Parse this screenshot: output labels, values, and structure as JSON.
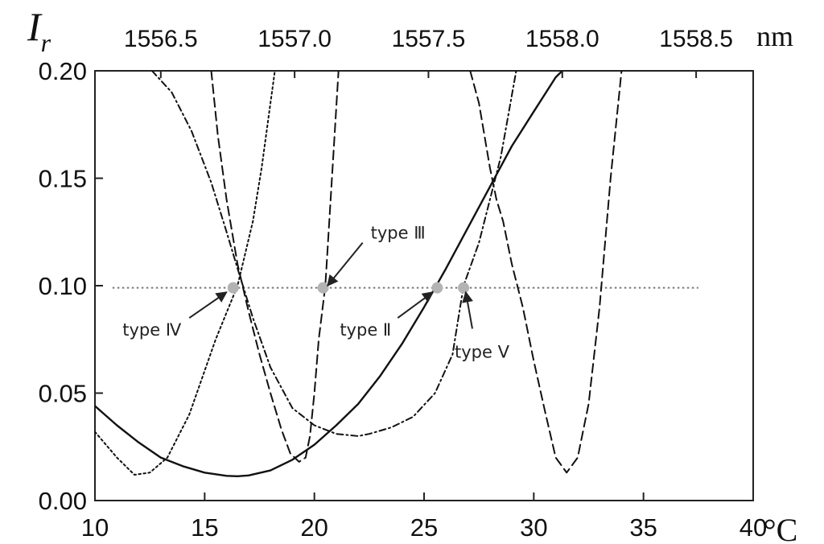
{
  "chart_data": {
    "type": "line",
    "y_axis": {
      "label_symbol": "I",
      "label_subscript": "r",
      "lim": [
        0,
        0.2
      ],
      "ticks": [
        0.0,
        0.05,
        0.1,
        0.15,
        0.2
      ],
      "tick_labels": [
        "0.00",
        "0.05",
        "0.10",
        "0.15",
        "0.20"
      ]
    },
    "x_axis_bottom": {
      "unit_label": "°C",
      "lim": [
        10,
        40
      ],
      "ticks": [
        10,
        15,
        20,
        25,
        30,
        35,
        40
      ],
      "tick_labels": [
        "10",
        "15",
        "20",
        "25",
        "30",
        "35",
        "40"
      ]
    },
    "x_axis_top": {
      "unit_label": "nm",
      "ticks": [
        1556.5,
        1557.0,
        1557.5,
        1558.0,
        1558.5
      ],
      "tick_labels": [
        "1556.5",
        "1557.0",
        "1557.5",
        "1558.0",
        "1558.5"
      ],
      "tick_positions_in_bottom_units": [
        13.0,
        19.1,
        25.2,
        31.3,
        37.4
      ]
    },
    "grid": false,
    "series": [
      {
        "style": "solid",
        "x": [
          10,
          11,
          12,
          13,
          14,
          15,
          16,
          16.5,
          17,
          18,
          19,
          20,
          21,
          22,
          23,
          24,
          25,
          26,
          27,
          28,
          29,
          30,
          31,
          31.3
        ],
        "y": [
          0.044,
          0.035,
          0.027,
          0.02,
          0.016,
          0.013,
          0.0115,
          0.0113,
          0.0117,
          0.014,
          0.019,
          0.026,
          0.035,
          0.045,
          0.058,
          0.073,
          0.09,
          0.108,
          0.127,
          0.146,
          0.165,
          0.181,
          0.197,
          0.2
        ]
      },
      {
        "style": "dashed",
        "x": [
          15.3,
          15.6,
          16.0,
          16.5,
          17.0,
          17.5,
          18.0,
          18.5,
          18.9,
          19.3,
          19.6,
          19.8,
          20.0,
          20.2,
          20.5,
          20.8,
          21.1
        ],
        "y": [
          0.2,
          0.17,
          0.14,
          0.11,
          0.088,
          0.068,
          0.05,
          0.033,
          0.022,
          0.018,
          0.02,
          0.03,
          0.05,
          0.075,
          0.1,
          0.15,
          0.2
        ]
      },
      {
        "style": "dotted",
        "x": [
          10,
          11,
          11.8,
          12.5,
          13.3,
          14.3,
          15.5,
          16.5,
          17.2,
          17.6,
          18.0,
          18.2
        ],
        "y": [
          0.032,
          0.02,
          0.012,
          0.013,
          0.02,
          0.04,
          0.075,
          0.1,
          0.13,
          0.155,
          0.185,
          0.2
        ]
      },
      {
        "style": "dashdot",
        "x": [
          12.6,
          13.5,
          14.4,
          15.3,
          16.0,
          16.5,
          17.2,
          18.0,
          19.0,
          20.0,
          21.0,
          22.0,
          22.5,
          23.5,
          24.5,
          25.5,
          26.3,
          26.8,
          27.5,
          28.5,
          29.2
        ],
        "y": [
          0.2,
          0.19,
          0.172,
          0.148,
          0.125,
          0.108,
          0.085,
          0.062,
          0.043,
          0.035,
          0.031,
          0.03,
          0.031,
          0.034,
          0.039,
          0.05,
          0.068,
          0.1,
          0.12,
          0.16,
          0.2
        ]
      },
      {
        "style": "dashed",
        "x": [
          27.1,
          27.5,
          28.0,
          28.3,
          28.6,
          29.0,
          29.5,
          30.0,
          30.5,
          31.0,
          31.5,
          32.0,
          32.5,
          33.0,
          33.5,
          34.0
        ],
        "y": [
          0.2,
          0.185,
          0.155,
          0.14,
          0.13,
          0.11,
          0.09,
          0.065,
          0.042,
          0.02,
          0.013,
          0.02,
          0.045,
          0.09,
          0.15,
          0.2
        ]
      }
    ],
    "reference_line": {
      "style": "dotted",
      "y": 0.099,
      "x_range": [
        10.8,
        37.5
      ]
    },
    "markers": {
      "color": "#b3b3b3",
      "points": [
        {
          "x": 16.3,
          "y": 0.099
        },
        {
          "x": 20.4,
          "y": 0.099
        },
        {
          "x": 25.6,
          "y": 0.099
        },
        {
          "x": 26.8,
          "y": 0.099
        }
      ]
    },
    "annotations": [
      {
        "text": "type Ⅲ",
        "arrow_from": {
          "x": 22.2,
          "y": 0.12
        },
        "arrow_to": {
          "x": 20.6,
          "y": 0.1
        }
      },
      {
        "text": "type Ⅳ",
        "arrow_from": {
          "x": 14.3,
          "y": 0.085
        },
        "arrow_to": {
          "x": 16.0,
          "y": 0.097
        }
      },
      {
        "text": "type Ⅱ",
        "arrow_from": {
          "x": 23.8,
          "y": 0.085
        },
        "arrow_to": {
          "x": 25.4,
          "y": 0.097
        }
      },
      {
        "text": "type Ⅴ",
        "arrow_from": {
          "x": 27.2,
          "y": 0.08
        },
        "arrow_to": {
          "x": 26.9,
          "y": 0.097
        }
      }
    ]
  },
  "colors": {
    "axis": "#222222",
    "curves": "#111111",
    "reference_line": "#777777",
    "marker": "#b3b3b3",
    "annotation": "#222222"
  }
}
